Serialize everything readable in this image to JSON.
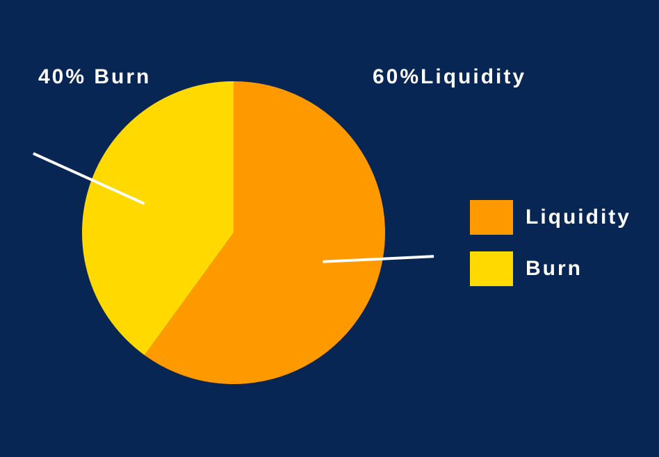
{
  "chart_data": {
    "type": "pie",
    "title": "",
    "slices": [
      {
        "label": "Liquidity",
        "value": 60,
        "color": "#FF9900"
      },
      {
        "label": "Burn",
        "value": 40,
        "color": "#FFD900"
      }
    ],
    "annotations": [
      {
        "text": "40% Burn",
        "slice": "Burn"
      },
      {
        "text": "60%Liquidity",
        "slice": "Liquidity"
      }
    ],
    "legend": {
      "placement": "right",
      "entries": [
        "Liquidity",
        "Burn"
      ]
    },
    "background_color": "#082654"
  }
}
